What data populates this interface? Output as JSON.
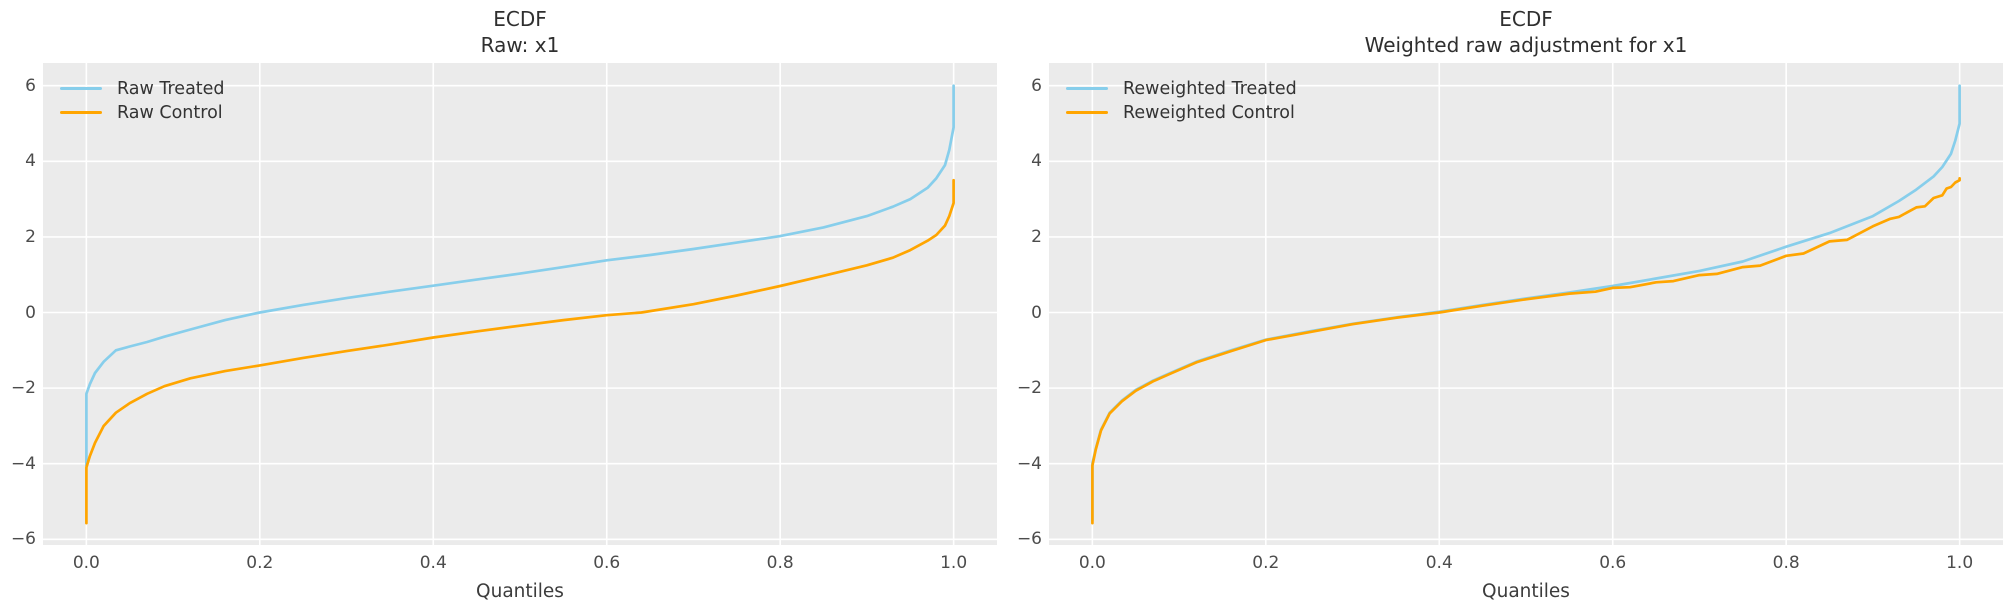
{
  "style": {
    "figure_bg": "#ffffff",
    "axes_bg": "#ebebeb",
    "grid_color": "#ffffff",
    "treated_color": "#87ceeb",
    "control_color": "#ffa500",
    "title_color": "#2f2f2f",
    "tick_color": "#4c4c4c"
  },
  "chart_data": [
    {
      "type": "line",
      "title": "ECDF\nRaw: x1",
      "xlabel": "Quantiles",
      "grid": true,
      "legend_position": "upper left",
      "xlim": [
        -0.05,
        1.05
      ],
      "ylim": [
        -6.15,
        6.6
      ],
      "xticks": [
        {
          "v": 0.0,
          "label": "0.0"
        },
        {
          "v": 0.2,
          "label": "0.2"
        },
        {
          "v": 0.4,
          "label": "0.4"
        },
        {
          "v": 0.6,
          "label": "0.6"
        },
        {
          "v": 0.8,
          "label": "0.8"
        },
        {
          "v": 1.0,
          "label": "1.0"
        }
      ],
      "yticks": [
        {
          "v": 6,
          "label": "6"
        },
        {
          "v": 4,
          "label": "4"
        },
        {
          "v": 2,
          "label": "2"
        },
        {
          "v": 0,
          "label": "0"
        },
        {
          "v": -2,
          "label": "−2"
        },
        {
          "v": -4,
          "label": "−4"
        },
        {
          "v": -6,
          "label": "−6"
        }
      ],
      "series": [
        {
          "name": "Raw Treated",
          "color": "#87ceeb",
          "points": [
            [
              0,
              -4.05
            ],
            [
              0,
              -2.15
            ],
            [
              0.004,
              -1.9
            ],
            [
              0.01,
              -1.6
            ],
            [
              0.02,
              -1.3
            ],
            [
              0.034,
              -1.0
            ],
            [
              0.05,
              -0.9
            ],
            [
              0.07,
              -0.78
            ],
            [
              0.09,
              -0.64
            ],
            [
              0.12,
              -0.45
            ],
            [
              0.16,
              -0.2
            ],
            [
              0.2,
              0.0
            ],
            [
              0.25,
              0.2
            ],
            [
              0.3,
              0.38
            ],
            [
              0.35,
              0.55
            ],
            [
              0.4,
              0.71
            ],
            [
              0.45,
              0.87
            ],
            [
              0.5,
              1.03
            ],
            [
              0.55,
              1.2
            ],
            [
              0.6,
              1.38
            ],
            [
              0.65,
              1.52
            ],
            [
              0.7,
              1.68
            ],
            [
              0.75,
              1.85
            ],
            [
              0.8,
              2.02
            ],
            [
              0.85,
              2.25
            ],
            [
              0.9,
              2.55
            ],
            [
              0.93,
              2.8
            ],
            [
              0.95,
              3.0
            ],
            [
              0.97,
              3.3
            ],
            [
              0.98,
              3.55
            ],
            [
              0.99,
              3.9
            ],
            [
              0.995,
              4.3
            ],
            [
              1.0,
              4.9
            ],
            [
              1.0,
              6.0
            ]
          ]
        },
        {
          "name": "Raw Control",
          "color": "#ffa500",
          "points": [
            [
              0,
              -5.57
            ],
            [
              0,
              -4.1
            ],
            [
              0.004,
              -3.8
            ],
            [
              0.01,
              -3.45
            ],
            [
              0.02,
              -3.0
            ],
            [
              0.034,
              -2.65
            ],
            [
              0.05,
              -2.4
            ],
            [
              0.07,
              -2.15
            ],
            [
              0.09,
              -1.95
            ],
            [
              0.12,
              -1.74
            ],
            [
              0.16,
              -1.55
            ],
            [
              0.2,
              -1.4
            ],
            [
              0.25,
              -1.2
            ],
            [
              0.3,
              -1.02
            ],
            [
              0.35,
              -0.85
            ],
            [
              0.4,
              -0.66
            ],
            [
              0.45,
              -0.5
            ],
            [
              0.5,
              -0.35
            ],
            [
              0.55,
              -0.2
            ],
            [
              0.6,
              -0.07
            ],
            [
              0.64,
              0.0
            ],
            [
              0.7,
              0.22
            ],
            [
              0.75,
              0.45
            ],
            [
              0.8,
              0.7
            ],
            [
              0.85,
              0.97
            ],
            [
              0.9,
              1.25
            ],
            [
              0.93,
              1.45
            ],
            [
              0.95,
              1.65
            ],
            [
              0.97,
              1.9
            ],
            [
              0.98,
              2.05
            ],
            [
              0.99,
              2.3
            ],
            [
              0.995,
              2.55
            ],
            [
              1.0,
              2.9
            ],
            [
              1.0,
              3.5
            ]
          ]
        }
      ]
    },
    {
      "type": "line",
      "title": "ECDF\nWeighted raw adjustment for x1",
      "xlabel": "Quantiles",
      "grid": true,
      "legend_position": "upper left",
      "xlim": [
        -0.05,
        1.05
      ],
      "ylim": [
        -6.15,
        6.6
      ],
      "xticks": [
        {
          "v": 0.0,
          "label": "0.0"
        },
        {
          "v": 0.2,
          "label": "0.2"
        },
        {
          "v": 0.4,
          "label": "0.4"
        },
        {
          "v": 0.6,
          "label": "0.6"
        },
        {
          "v": 0.8,
          "label": "0.8"
        },
        {
          "v": 1.0,
          "label": "1.0"
        }
      ],
      "yticks": [
        {
          "v": 6,
          "label": "6"
        },
        {
          "v": 4,
          "label": "4"
        },
        {
          "v": 2,
          "label": "2"
        },
        {
          "v": 0,
          "label": "0"
        },
        {
          "v": -2,
          "label": "−2"
        },
        {
          "v": -4,
          "label": "−4"
        },
        {
          "v": -6,
          "label": "−6"
        }
      ],
      "series": [
        {
          "name": "Reweighted Treated",
          "color": "#87ceeb",
          "points": [
            [
              0,
              -5.5
            ],
            [
              0,
              -4.0
            ],
            [
              0.004,
              -3.6
            ],
            [
              0.01,
              -3.1
            ],
            [
              0.02,
              -2.65
            ],
            [
              0.034,
              -2.33
            ],
            [
              0.05,
              -2.05
            ],
            [
              0.07,
              -1.8
            ],
            [
              0.09,
              -1.6
            ],
            [
              0.12,
              -1.3
            ],
            [
              0.16,
              -1.0
            ],
            [
              0.2,
              -0.72
            ],
            [
              0.25,
              -0.5
            ],
            [
              0.3,
              -0.3
            ],
            [
              0.35,
              -0.13
            ],
            [
              0.4,
              0.02
            ],
            [
              0.45,
              0.2
            ],
            [
              0.5,
              0.37
            ],
            [
              0.55,
              0.53
            ],
            [
              0.6,
              0.7
            ],
            [
              0.65,
              0.9
            ],
            [
              0.7,
              1.1
            ],
            [
              0.75,
              1.35
            ],
            [
              0.8,
              1.74
            ],
            [
              0.85,
              2.1
            ],
            [
              0.9,
              2.55
            ],
            [
              0.93,
              2.95
            ],
            [
              0.95,
              3.25
            ],
            [
              0.97,
              3.6
            ],
            [
              0.98,
              3.85
            ],
            [
              0.99,
              4.2
            ],
            [
              0.995,
              4.55
            ],
            [
              1.0,
              5.0
            ],
            [
              1.0,
              6.0
            ]
          ]
        },
        {
          "name": "Reweighted Control",
          "color": "#ffa500",
          "points": [
            [
              0,
              -5.57
            ],
            [
              0,
              -4.05
            ],
            [
              0.004,
              -3.62
            ],
            [
              0.01,
              -3.12
            ],
            [
              0.02,
              -2.67
            ],
            [
              0.034,
              -2.35
            ],
            [
              0.05,
              -2.07
            ],
            [
              0.07,
              -1.82
            ],
            [
              0.09,
              -1.62
            ],
            [
              0.12,
              -1.32
            ],
            [
              0.16,
              -1.02
            ],
            [
              0.2,
              -0.73
            ],
            [
              0.25,
              -0.52
            ],
            [
              0.3,
              -0.31
            ],
            [
              0.35,
              -0.14
            ],
            [
              0.4,
              0.0
            ],
            [
              0.45,
              0.18
            ],
            [
              0.5,
              0.35
            ],
            [
              0.55,
              0.5
            ],
            [
              0.58,
              0.55
            ],
            [
              0.6,
              0.65
            ],
            [
              0.62,
              0.67
            ],
            [
              0.65,
              0.8
            ],
            [
              0.67,
              0.83
            ],
            [
              0.7,
              0.99
            ],
            [
              0.72,
              1.02
            ],
            [
              0.75,
              1.2
            ],
            [
              0.77,
              1.24
            ],
            [
              0.8,
              1.5
            ],
            [
              0.82,
              1.56
            ],
            [
              0.85,
              1.88
            ],
            [
              0.87,
              1.92
            ],
            [
              0.9,
              2.28
            ],
            [
              0.92,
              2.48
            ],
            [
              0.93,
              2.53
            ],
            [
              0.95,
              2.78
            ],
            [
              0.96,
              2.81
            ],
            [
              0.97,
              3.03
            ],
            [
              0.98,
              3.1
            ],
            [
              0.985,
              3.28
            ],
            [
              0.99,
              3.32
            ],
            [
              0.995,
              3.44
            ],
            [
              1.0,
              3.5
            ],
            [
              1.0,
              3.55
            ]
          ]
        }
      ]
    }
  ]
}
